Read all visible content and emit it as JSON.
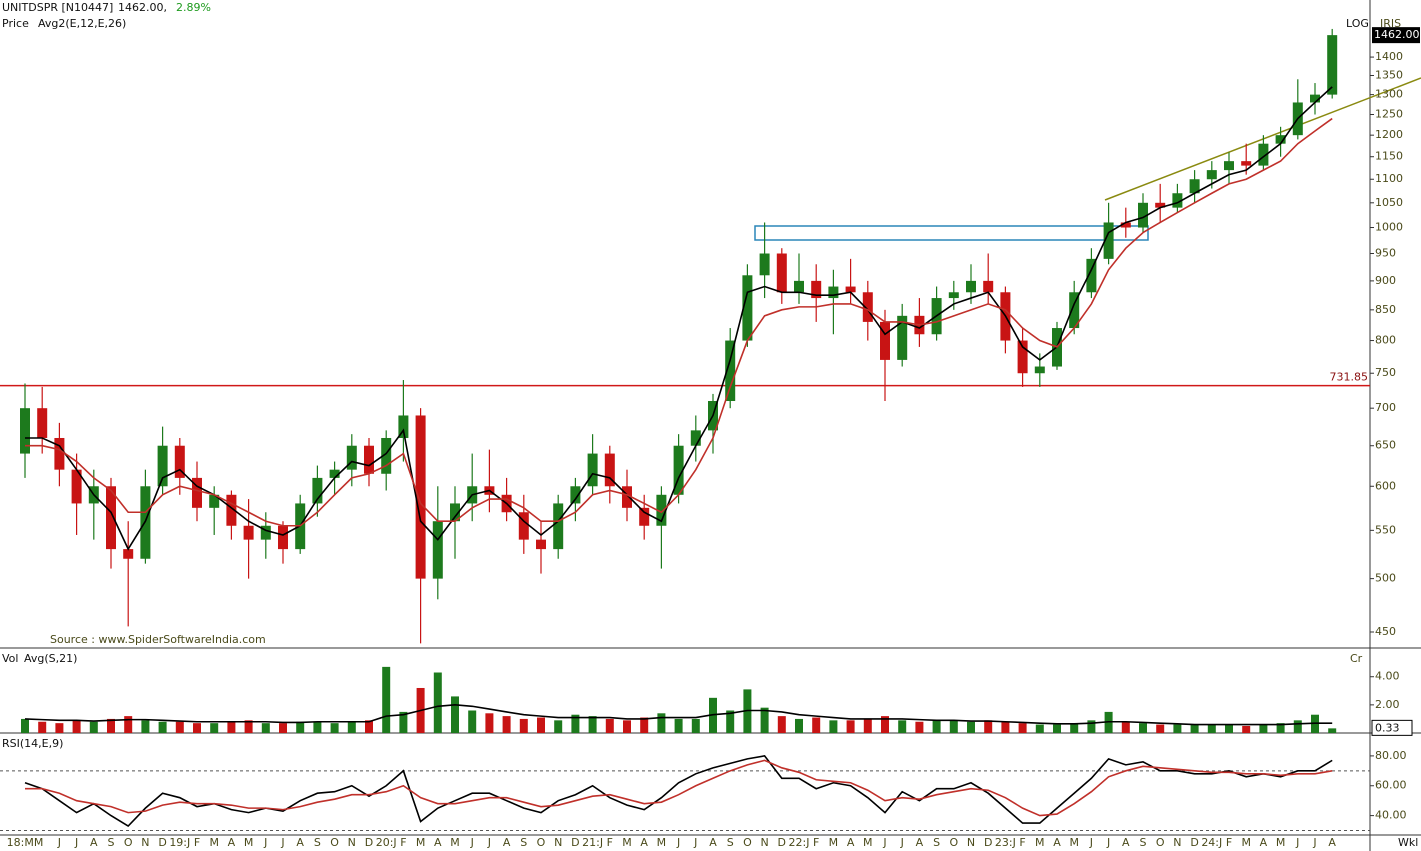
{
  "interval": "Wkl",
  "chart_data": [
    {
      "type": "candlestick",
      "title": "UNITDSPR [N10447]",
      "last": "1462.00,",
      "change": "2.89%",
      "label": "Price",
      "indicator": "Avg2(E,12,E,26)",
      "scale_label": "LOG",
      "theme": "IRIS",
      "source": "Source : www.SpiderSoftwareIndia.com",
      "log_scale": true,
      "up_color": "#1d7a1d",
      "down_color": "#c81414",
      "categories": [
        "18:MM",
        null,
        "J",
        "J",
        "A",
        "S",
        "O",
        "N",
        "D",
        "19:J",
        "F",
        "M",
        "A",
        "M",
        "J",
        "J",
        "A",
        "S",
        "O",
        "N",
        "D",
        "20:J",
        "F",
        "M",
        "A",
        "M",
        "J",
        "J",
        "A",
        "S",
        "O",
        "N",
        "D",
        "21:J",
        "F",
        "M",
        "A",
        "M",
        "J",
        "J",
        "A",
        "S",
        "O",
        "N",
        "D",
        "22:J",
        "F",
        "M",
        "A",
        "M",
        "J",
        "J",
        "A",
        "S",
        "O",
        "N",
        "D",
        "23:J",
        "F",
        "M",
        "A",
        "M",
        "J",
        "J",
        "A",
        "S",
        "O",
        "N",
        "D",
        "24:J",
        "F",
        "M",
        "A",
        "M",
        "J",
        "J",
        "A"
      ],
      "open": [
        640,
        700,
        660,
        620,
        580,
        600,
        530,
        520,
        600,
        650,
        610,
        575,
        590,
        555,
        540,
        555,
        530,
        580,
        610,
        620,
        650,
        615,
        660,
        690,
        500,
        560,
        580,
        600,
        590,
        570,
        540,
        530,
        580,
        600,
        640,
        600,
        575,
        555,
        590,
        650,
        670,
        710,
        800,
        910,
        950,
        880,
        900,
        870,
        890,
        880,
        830,
        770,
        840,
        810,
        870,
        880,
        900,
        880,
        800,
        750,
        760,
        820,
        880,
        940,
        1010,
        1000,
        1050,
        1040,
        1070,
        1100,
        1120,
        1140,
        1130,
        1180,
        1200,
        1280,
        1300
      ],
      "high": [
        735,
        730,
        680,
        640,
        620,
        610,
        560,
        620,
        675,
        660,
        630,
        600,
        595,
        585,
        570,
        560,
        590,
        625,
        630,
        665,
        660,
        670,
        740,
        700,
        600,
        600,
        640,
        645,
        610,
        590,
        560,
        590,
        610,
        665,
        650,
        620,
        590,
        600,
        665,
        690,
        720,
        820,
        930,
        1010,
        960,
        950,
        930,
        920,
        940,
        900,
        850,
        860,
        870,
        890,
        900,
        930,
        950,
        890,
        820,
        780,
        830,
        900,
        960,
        1050,
        1040,
        1070,
        1090,
        1090,
        1120,
        1140,
        1160,
        1180,
        1200,
        1220,
        1340,
        1330,
        1480
      ],
      "low": [
        610,
        640,
        600,
        545,
        540,
        510,
        455,
        515,
        590,
        590,
        560,
        545,
        540,
        500,
        520,
        515,
        525,
        565,
        590,
        600,
        600,
        595,
        630,
        440,
        480,
        520,
        560,
        570,
        560,
        525,
        505,
        520,
        560,
        590,
        580,
        560,
        540,
        510,
        580,
        630,
        640,
        700,
        790,
        870,
        860,
        860,
        830,
        810,
        860,
        800,
        710,
        760,
        790,
        800,
        850,
        860,
        860,
        780,
        730,
        730,
        755,
        810,
        870,
        930,
        980,
        990,
        1010,
        1030,
        1050,
        1080,
        1090,
        1110,
        1120,
        1150,
        1190,
        1250,
        1290
      ],
      "close": [
        700,
        660,
        620,
        580,
        600,
        530,
        520,
        600,
        650,
        610,
        575,
        590,
        555,
        540,
        555,
        530,
        580,
        610,
        620,
        650,
        615,
        660,
        690,
        500,
        560,
        580,
        600,
        590,
        570,
        540,
        530,
        580,
        600,
        640,
        600,
        575,
        555,
        590,
        650,
        670,
        710,
        800,
        910,
        950,
        880,
        900,
        870,
        890,
        880,
        830,
        770,
        840,
        810,
        870,
        880,
        900,
        880,
        800,
        750,
        760,
        820,
        880,
        940,
        1010,
        1000,
        1050,
        1040,
        1070,
        1100,
        1120,
        1140,
        1130,
        1180,
        1200,
        1280,
        1300,
        1462
      ],
      "series": [
        {
          "color": "#000000",
          "values": [
            660,
            660,
            650,
            620,
            590,
            570,
            530,
            560,
            610,
            620,
            600,
            590,
            575,
            560,
            550,
            545,
            555,
            585,
            610,
            630,
            625,
            640,
            670,
            560,
            540,
            565,
            590,
            595,
            580,
            560,
            545,
            560,
            585,
            615,
            610,
            590,
            570,
            560,
            610,
            650,
            690,
            770,
            880,
            890,
            880,
            880,
            875,
            875,
            880,
            850,
            810,
            830,
            820,
            840,
            860,
            870,
            880,
            840,
            790,
            770,
            790,
            860,
            920,
            990,
            1010,
            1020,
            1040,
            1050,
            1070,
            1090,
            1110,
            1120,
            1150,
            1180,
            1240,
            1280,
            1320
          ]
        },
        {
          "color": "#c0302a",
          "values": [
            650,
            650,
            645,
            630,
            610,
            595,
            570,
            570,
            590,
            600,
            595,
            590,
            580,
            570,
            560,
            555,
            555,
            570,
            590,
            610,
            615,
            625,
            640,
            580,
            560,
            560,
            575,
            585,
            585,
            575,
            560,
            560,
            570,
            590,
            595,
            590,
            580,
            570,
            590,
            620,
            660,
            730,
            800,
            840,
            850,
            855,
            855,
            860,
            860,
            850,
            830,
            830,
            825,
            830,
            840,
            850,
            860,
            850,
            820,
            800,
            790,
            820,
            860,
            920,
            960,
            990,
            1010,
            1030,
            1050,
            1070,
            1090,
            1100,
            1120,
            1140,
            1180,
            1210,
            1240
          ]
        }
      ],
      "hline": 731.85,
      "last_price": {
        "value": 1462,
        "label": "1462.00"
      },
      "ylim": [
        436,
        1567
      ],
      "yticks": [
        450,
        500,
        550,
        600,
        650,
        700,
        750,
        800,
        850,
        900,
        950,
        1000,
        1050,
        1100,
        1150,
        1200,
        1250,
        1300,
        1350,
        1400
      ]
    },
    {
      "type": "bar",
      "title": "Vol",
      "indicator": "Avg(S,21)",
      "unit": "Cr",
      "values": [
        1.0,
        0.8,
        0.7,
        0.9,
        0.8,
        1.0,
        1.2,
        0.9,
        0.8,
        0.8,
        0.7,
        0.7,
        0.8,
        0.9,
        0.7,
        0.7,
        0.8,
        0.8,
        0.7,
        0.8,
        0.9,
        4.7,
        1.5,
        3.2,
        4.3,
        2.6,
        1.6,
        1.4,
        1.2,
        1.0,
        1.1,
        0.9,
        1.3,
        1.2,
        1.0,
        0.9,
        1.1,
        1.4,
        1.0,
        1.0,
        2.5,
        1.6,
        3.1,
        1.8,
        1.2,
        1.0,
        1.1,
        0.9,
        0.9,
        1.0,
        1.2,
        0.9,
        0.8,
        0.9,
        0.9,
        0.8,
        0.9,
        0.8,
        0.7,
        0.6,
        0.6,
        0.7,
        0.9,
        1.5,
        0.8,
        0.7,
        0.6,
        0.6,
        0.6,
        0.6,
        0.6,
        0.5,
        0.6,
        0.7,
        0.9,
        1.3,
        0.33
      ],
      "series": [
        {
          "color": "#000000",
          "values": [
            1.0,
            0.95,
            0.9,
            0.9,
            0.85,
            0.9,
            0.95,
            0.95,
            0.9,
            0.85,
            0.8,
            0.8,
            0.8,
            0.8,
            0.8,
            0.75,
            0.75,
            0.8,
            0.8,
            0.8,
            0.8,
            1.2,
            1.3,
            1.6,
            1.9,
            2.0,
            1.9,
            1.7,
            1.5,
            1.3,
            1.2,
            1.1,
            1.1,
            1.1,
            1.1,
            1.0,
            1.0,
            1.1,
            1.1,
            1.1,
            1.3,
            1.4,
            1.6,
            1.6,
            1.5,
            1.3,
            1.2,
            1.1,
            1.0,
            1.0,
            1.0,
            1.0,
            0.95,
            0.9,
            0.9,
            0.85,
            0.85,
            0.8,
            0.75,
            0.7,
            0.65,
            0.65,
            0.7,
            0.8,
            0.8,
            0.75,
            0.7,
            0.65,
            0.6,
            0.6,
            0.6,
            0.6,
            0.6,
            0.6,
            0.65,
            0.7,
            0.7
          ]
        }
      ],
      "last_value": {
        "value": 0.33,
        "label": "0.33"
      },
      "ylim": [
        0,
        5.9
      ],
      "yticks": [
        {
          "value": 2,
          "label": "2.00"
        },
        {
          "value": 4,
          "label": "4.00"
        }
      ]
    },
    {
      "type": "line",
      "title": "RSI(14,E,9)",
      "series": [
        {
          "color": "#000000",
          "values": [
            62,
            58,
            50,
            42,
            48,
            40,
            33,
            45,
            55,
            52,
            46,
            48,
            44,
            42,
            45,
            43,
            50,
            55,
            56,
            60,
            53,
            60,
            70,
            36,
            45,
            50,
            55,
            55,
            50,
            45,
            42,
            50,
            54,
            60,
            52,
            47,
            44,
            52,
            62,
            68,
            72,
            75,
            78,
            80,
            65,
            65,
            58,
            62,
            60,
            52,
            42,
            56,
            50,
            58,
            58,
            62,
            55,
            45,
            35,
            35,
            45,
            55,
            65,
            78,
            74,
            76,
            70,
            70,
            68,
            68,
            70,
            66,
            68,
            66,
            70,
            70,
            77
          ]
        },
        {
          "color": "#c0302a",
          "values": [
            58,
            58,
            55,
            50,
            48,
            46,
            42,
            43,
            47,
            49,
            48,
            48,
            47,
            45,
            45,
            44,
            46,
            49,
            51,
            54,
            54,
            56,
            60,
            52,
            48,
            48,
            50,
            52,
            52,
            49,
            46,
            47,
            50,
            53,
            54,
            51,
            48,
            49,
            54,
            60,
            65,
            70,
            74,
            77,
            72,
            69,
            64,
            63,
            62,
            57,
            50,
            52,
            51,
            54,
            56,
            58,
            57,
            52,
            45,
            40,
            41,
            48,
            56,
            66,
            70,
            73,
            72,
            71,
            70,
            69,
            69,
            68,
            68,
            67,
            68,
            68,
            70
          ]
        }
      ],
      "levels": [
        30,
        70
      ],
      "ylim": [
        27,
        94
      ],
      "yticks": [
        {
          "value": 40,
          "label": "40.00"
        },
        {
          "value": 60,
          "label": "60.00"
        },
        {
          "value": 80,
          "label": "80.00"
        }
      ]
    }
  ]
}
